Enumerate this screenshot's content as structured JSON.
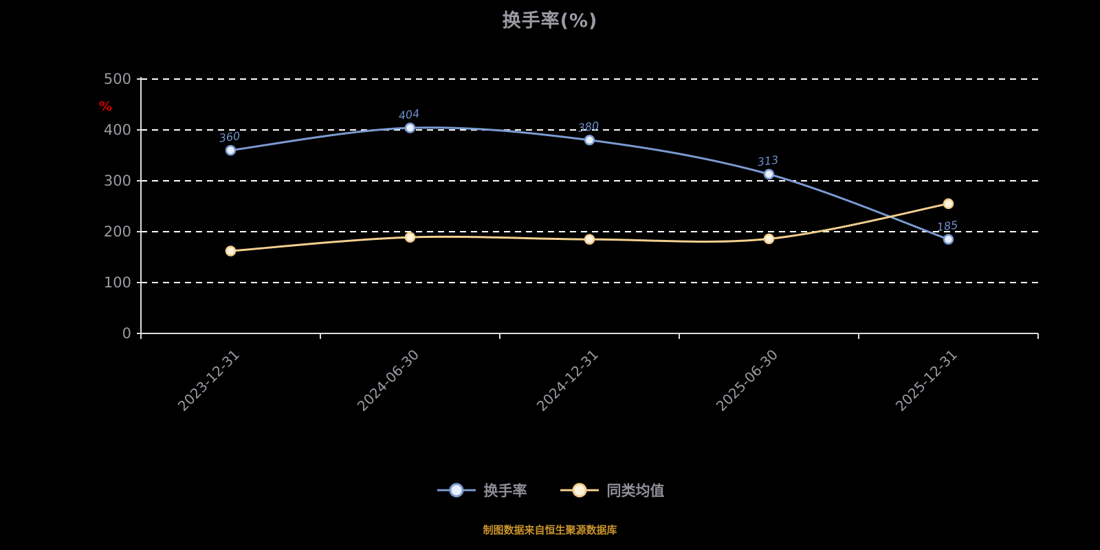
{
  "title": "换手率(%)",
  "y_axis_unit": "%",
  "source_note": "制图数据来自恒生聚源数据库",
  "chart_data": {
    "type": "line",
    "title": "换手率(%)",
    "categories": [
      "2023-12-31",
      "2024-06-30",
      "2024-12-31",
      "2025-06-30",
      "2025-12-31"
    ],
    "series": [
      {
        "name": "换手率",
        "color": "#7b9bd2",
        "marker_fill": "#e9effa",
        "values": [
          360,
          404,
          380,
          313,
          185
        ],
        "point_labels": [
          "360",
          "404",
          "380",
          "313",
          "185"
        ]
      },
      {
        "name": "同类均值",
        "color": "#f3cf8e",
        "marker_fill": "#fdf3dd",
        "values": [
          162,
          189,
          185,
          186,
          255
        ]
      }
    ],
    "ylim": [
      0,
      500
    ],
    "yticks": [
      0,
      100,
      200,
      300,
      400,
      500
    ],
    "grid": "horizontal-dashed",
    "legend_position": "bottom"
  },
  "axis_style": {
    "axis_line_color": "#dedee2",
    "grid_line_color": "#ffffff",
    "tick_label_color": "#9a9aa2",
    "point_label_color": "#6f8fc9"
  }
}
